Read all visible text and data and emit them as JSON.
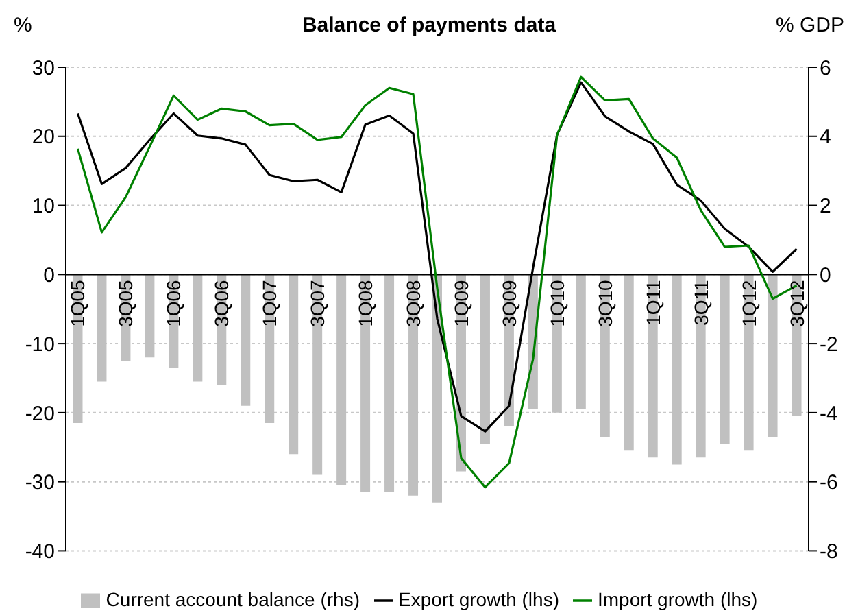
{
  "chart_data": {
    "type": "bar",
    "title": "Balance of payments data",
    "ylabel": "%",
    "y2label": "% GDP",
    "categories": [
      "1Q05",
      null,
      "3Q05",
      null,
      "1Q06",
      null,
      "3Q06",
      null,
      "1Q07",
      null,
      "3Q07",
      null,
      "1Q08",
      null,
      "3Q08",
      null,
      "1Q09",
      null,
      "3Q09",
      null,
      "1Q10",
      null,
      "3Q10",
      null,
      "1Q11",
      null,
      "3Q11",
      null,
      "1Q12",
      null,
      "3Q12"
    ],
    "series": [
      {
        "name": "Current account balance (rhs)",
        "axis": "y2",
        "color": "#c0c0c0",
        "values": [
          -4.3,
          -3.1,
          -2.5,
          -2.4,
          -2.7,
          -3.1,
          -3.2,
          -3.8,
          -4.3,
          -5.2,
          -5.8,
          -6.1,
          -6.3,
          -6.3,
          -6.4,
          -6.6,
          -5.7,
          -4.9,
          -4.4,
          -3.9,
          -4.0,
          -3.9,
          -4.7,
          -5.1,
          -5.3,
          -5.5,
          -5.3,
          -4.9,
          -5.1,
          -4.7,
          -4.1
        ]
      },
      {
        "name": "Export growth (lhs)",
        "type": "line",
        "color": "#000000",
        "values": [
          23.3,
          13.1,
          15.4,
          19.5,
          23.3,
          20.1,
          19.7,
          18.8,
          14.4,
          13.5,
          13.7,
          11.9,
          21.7,
          23.0,
          20.4,
          -6.4,
          -20.5,
          -22.7,
          -19.0,
          1.0,
          20.2,
          27.8,
          22.9,
          20.7,
          18.9,
          13.0,
          10.7,
          6.6,
          4.0,
          0.4,
          3.7
        ]
      },
      {
        "name": "Import growth (lhs)",
        "type": "line",
        "color": "#008000",
        "values": [
          18.2,
          6.1,
          11.2,
          18.5,
          25.9,
          22.4,
          24.0,
          23.6,
          21.6,
          21.8,
          19.5,
          19.9,
          24.5,
          27.0,
          26.1,
          -2.0,
          -26.6,
          -30.8,
          -27.3,
          -12.2,
          20.2,
          28.6,
          25.2,
          25.4,
          19.7,
          16.9,
          9.3,
          4.0,
          4.2,
          -3.5,
          -1.6
        ]
      }
    ],
    "ylim": [
      -40,
      30
    ],
    "yticks": [
      -40,
      -30,
      -20,
      -10,
      0,
      10,
      20,
      30
    ],
    "y2lim": [
      -8,
      6
    ],
    "y2ticks": [
      -8,
      -6,
      -4,
      -2,
      0,
      2,
      4,
      6
    ],
    "grid": "y",
    "legend": "bottom",
    "marker": "none",
    "line_style": "solid"
  }
}
